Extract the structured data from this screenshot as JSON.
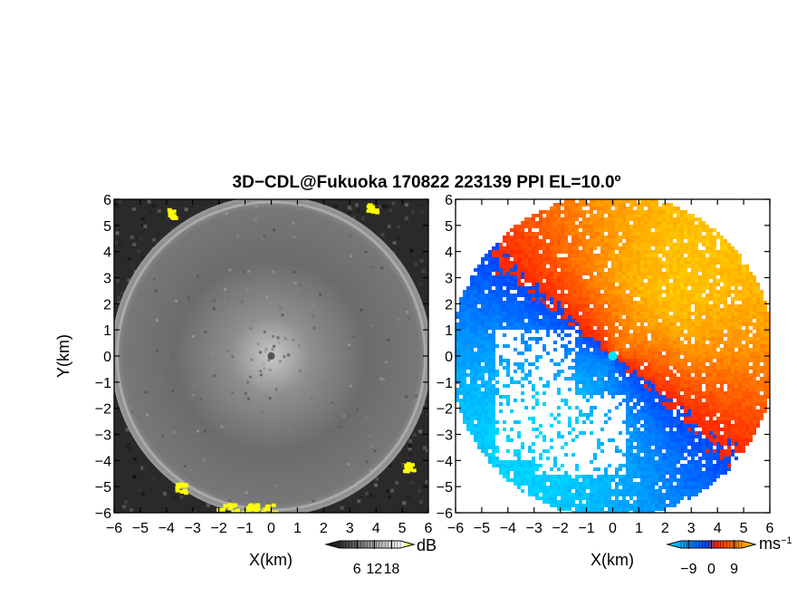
{
  "title": "3D−CDL@Fukuoka 170822 223139 PPI EL=10.0º",
  "chart_data": [
    {
      "type": "heatmap",
      "panel": "left",
      "quantity": "reflectivity",
      "xlabel": "X(km)",
      "ylabel": "Y(km)",
      "xlim": [
        -6,
        6
      ],
      "ylim": [
        -6,
        6
      ],
      "xticks": [
        "−6",
        "−5",
        "−4",
        "−3",
        "−2",
        "−1",
        "0",
        "1",
        "2",
        "3",
        "4",
        "5",
        "6"
      ],
      "yticks": [
        "−6",
        "−5",
        "−4",
        "−3",
        "−2",
        "−1",
        "0",
        "1",
        "2",
        "3",
        "4",
        "5",
        "6"
      ],
      "colorbar": {
        "unit": "dB",
        "ticks": [
          "6",
          "12",
          "18"
        ],
        "tick_values": [
          6,
          12,
          18
        ],
        "range": [
          0,
          21
        ],
        "colors": [
          "#000000",
          "#ffffff",
          "#ffff00"
        ]
      },
      "range_ring_radius_km": 6,
      "dominant_value_db": 9,
      "near_field_gap_radius_km": 0.4,
      "high_echo_regions": [
        {
          "location": "top-left edge",
          "value_db": 20
        },
        {
          "location": "top-right edge",
          "value_db": 20
        },
        {
          "location": "bottom-left edge",
          "value_db": 20
        },
        {
          "location": "bottom edge",
          "value_db": 20
        },
        {
          "location": "bottom-right edge",
          "value_db": 20
        }
      ]
    },
    {
      "type": "heatmap",
      "panel": "right",
      "quantity": "Doppler velocity",
      "xlabel": "X(km)",
      "ylabel": "",
      "xlim": [
        -6,
        6
      ],
      "ylim": [
        -6,
        6
      ],
      "xticks": [
        "−6",
        "−5",
        "−4",
        "−3",
        "−2",
        "−1",
        "0",
        "1",
        "2",
        "3",
        "4",
        "5",
        "6"
      ],
      "yticks": [
        "−6",
        "−5",
        "−4",
        "−3",
        "−2",
        "−1",
        "0",
        "1",
        "2",
        "3",
        "4",
        "5",
        "6"
      ],
      "colorbar": {
        "unit": "ms",
        "unit_superscript": "−1",
        "ticks": [
          "−9",
          "0",
          "9"
        ],
        "tick_values": [
          -9,
          0,
          9
        ],
        "range": [
          -12,
          12
        ],
        "colors": [
          "#00ddff",
          "#0044ff",
          "#ff2200",
          "#ffd000"
        ]
      },
      "pattern": {
        "receding_direction_deg_from_north": 40,
        "approaching_direction_deg_from_north": 220,
        "max_speed_ms": 11
      }
    }
  ]
}
